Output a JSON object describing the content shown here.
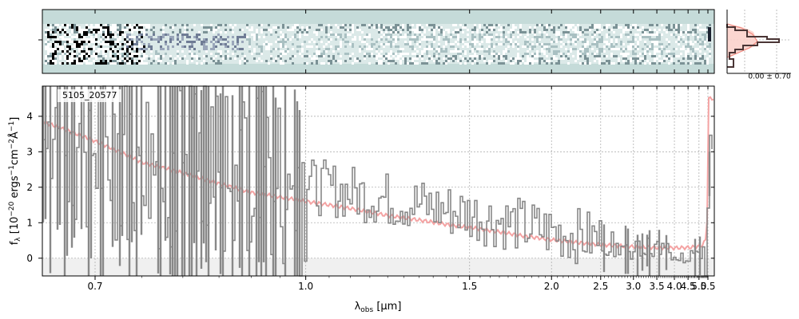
{
  "chart_data": {
    "type": "line",
    "object_label": "5105_20577",
    "xlabel": "λ_obs [μm]",
    "ylabel": "f_λ [10^-20 ergs^-1 cm^-2 Å^-1]",
    "x_scale": "reciprocal (λ^-1)",
    "xlim": [
      0.6,
      5.52
    ],
    "ylim": [
      -0.5,
      4.85
    ],
    "x_ticks": [
      0.7,
      1.0,
      1.5,
      2.0,
      2.5,
      3.0,
      3.5,
      4.0,
      4.5,
      5.0,
      5.5
    ],
    "x_tick_labels": [
      "0.7",
      "1.0",
      "1.5",
      "2.0",
      "2.5",
      "3.0",
      "3.5",
      "4.0",
      "4.5",
      "5.0",
      "5.5"
    ],
    "y_ticks": [
      0,
      1,
      2,
      3,
      4
    ],
    "y_tick_labels": [
      "0",
      "1",
      "2",
      "3",
      "4"
    ],
    "grid": true,
    "shaded_noise_band": [
      -0.5,
      0.0
    ],
    "series": [
      {
        "role": "observed spectrum (grey step)",
        "color": "#888888",
        "x": [
          0.62,
          0.65,
          0.7,
          0.75,
          0.8,
          0.85,
          0.9,
          0.95,
          1.0,
          1.1,
          1.2,
          1.3,
          1.4,
          1.5,
          1.6,
          1.7,
          1.8,
          1.9,
          2.0,
          2.1,
          2.2,
          2.3,
          2.4,
          2.5,
          2.6,
          2.8,
          3.0,
          3.2,
          3.4,
          3.6,
          3.8,
          4.0,
          4.2,
          4.4,
          4.6,
          4.8,
          5.0,
          5.2,
          5.4,
          5.48,
          5.5
        ],
        "y": [
          2.6,
          3.4,
          3.2,
          2.9,
          2.7,
          2.5,
          2.35,
          2.2,
          2.05,
          1.85,
          1.65,
          1.5,
          1.35,
          1.25,
          1.1,
          1.0,
          0.9,
          0.8,
          0.75,
          0.7,
          0.65,
          0.6,
          0.55,
          0.5,
          0.4,
          0.35,
          0.3,
          0.28,
          0.25,
          0.25,
          0.2,
          0.2,
          0.15,
          0.15,
          0.15,
          0.12,
          0.2,
          0.35,
          0.5,
          1.2,
          2.6
        ]
      },
      {
        "role": "model continuum (red)",
        "color": "#f4a3a3",
        "x": [
          0.62,
          0.7,
          0.75,
          0.8,
          0.85,
          0.9,
          1.0,
          1.2,
          1.4,
          1.6,
          1.8,
          2.0,
          2.2,
          2.5,
          3.0,
          3.5,
          4.0,
          4.5,
          5.0,
          5.2,
          5.4,
          5.48,
          5.5
        ],
        "y": [
          4.2,
          3.3,
          2.7,
          2.4,
          2.1,
          1.85,
          1.6,
          1.2,
          0.95,
          0.78,
          0.62,
          0.52,
          0.45,
          0.38,
          0.32,
          0.3,
          0.29,
          0.3,
          0.33,
          0.38,
          0.55,
          1.4,
          4.5
        ]
      }
    ],
    "summary_panel_label": "0.00 ± 0.70"
  },
  "colors": {
    "observed": "#888888",
    "model": "#f4a3a3",
    "model_fill": "#fbd1cb",
    "profile": "#5a4040",
    "twod_background": "#c5dbd9",
    "twod_dark": "#1c2230"
  }
}
